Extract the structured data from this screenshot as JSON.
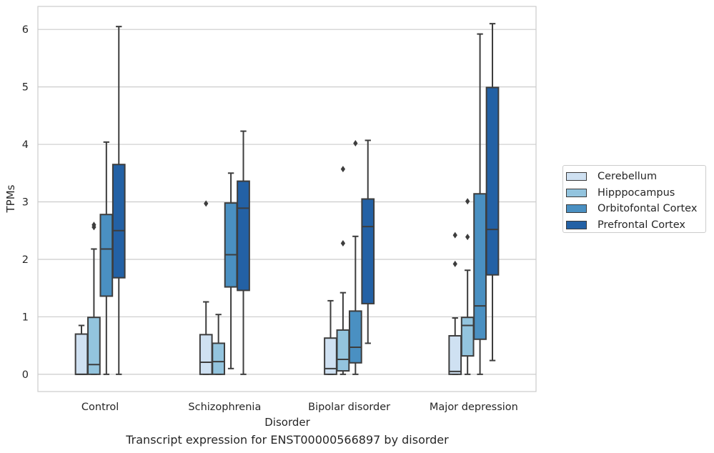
{
  "chart_data": {
    "type": "box",
    "caption": "Transcript expression for ENST00000566897 by disorder",
    "xlabel": "Disorder",
    "ylabel": "TPMs",
    "ylim": [
      -0.3,
      6.4
    ],
    "yticks": [
      0,
      1,
      2,
      3,
      4,
      5,
      6
    ],
    "grid": "horizontal",
    "legend_position": "right",
    "categories": [
      "Control",
      "Schizophrenia",
      "Bipolar disorder",
      "Major depression"
    ],
    "series": [
      {
        "name": "Cerebellum",
        "color": "#cfe1f2",
        "boxes": [
          {
            "whisker_low": 0,
            "q1": 0,
            "median": 0,
            "q3": 0.7,
            "whisker_high": 0.85,
            "outliers": []
          },
          {
            "whisker_low": 0,
            "q1": 0,
            "median": 0.21,
            "q3": 0.69,
            "whisker_high": 1.26,
            "outliers": [
              2.97
            ]
          },
          {
            "whisker_low": 0,
            "q1": 0,
            "median": 0.1,
            "q3": 0.63,
            "whisker_high": 1.28,
            "outliers": []
          },
          {
            "whisker_low": 0,
            "q1": 0,
            "median": 0.05,
            "q3": 0.67,
            "whisker_high": 0.98,
            "outliers": [
              2.42,
              1.92
            ]
          }
        ]
      },
      {
        "name": "Hipppocampus",
        "color": "#93c4de",
        "boxes": [
          {
            "whisker_low": 0,
            "q1": 0,
            "median": 0.17,
            "q3": 0.99,
            "whisker_high": 2.18,
            "outliers": [
              2.56,
              2.6
            ]
          },
          {
            "whisker_low": 0,
            "q1": 0,
            "median": 0.22,
            "q3": 0.54,
            "whisker_high": 1.04,
            "outliers": []
          },
          {
            "whisker_low": 0,
            "q1": 0.06,
            "median": 0.26,
            "q3": 0.77,
            "whisker_high": 1.42,
            "outliers": [
              3.57,
              2.28
            ]
          },
          {
            "whisker_low": 0,
            "q1": 0.32,
            "median": 0.85,
            "q3": 0.99,
            "whisker_high": 1.81,
            "outliers": [
              3.01,
              2.39
            ]
          }
        ]
      },
      {
        "name": "Orbitofontal Cortex",
        "color": "#4a90c2",
        "boxes": [
          {
            "whisker_low": 0,
            "q1": 1.36,
            "median": 2.18,
            "q3": 2.78,
            "whisker_high": 4.04,
            "outliers": []
          },
          {
            "whisker_low": 0.1,
            "q1": 1.52,
            "median": 2.08,
            "q3": 2.98,
            "whisker_high": 3.5,
            "outliers": []
          },
          {
            "whisker_low": 0,
            "q1": 0.2,
            "median": 0.47,
            "q3": 1.1,
            "whisker_high": 2.4,
            "outliers": [
              4.02
            ]
          },
          {
            "whisker_low": 0,
            "q1": 0.61,
            "median": 1.19,
            "q3": 3.14,
            "whisker_high": 5.92,
            "outliers": []
          }
        ]
      },
      {
        "name": "Prefrontal Cortex",
        "color": "#2361a5",
        "boxes": [
          {
            "whisker_low": 0,
            "q1": 1.68,
            "median": 2.5,
            "q3": 3.65,
            "whisker_high": 6.05,
            "outliers": []
          },
          {
            "whisker_low": 0,
            "q1": 1.46,
            "median": 2.89,
            "q3": 3.36,
            "whisker_high": 4.23,
            "outliers": []
          },
          {
            "whisker_low": 0.54,
            "q1": 1.23,
            "median": 2.57,
            "q3": 3.05,
            "whisker_high": 4.07,
            "outliers": []
          },
          {
            "whisker_low": 0.24,
            "q1": 1.73,
            "median": 2.52,
            "q3": 4.99,
            "whisker_high": 6.1,
            "outliers": []
          }
        ]
      }
    ]
  }
}
